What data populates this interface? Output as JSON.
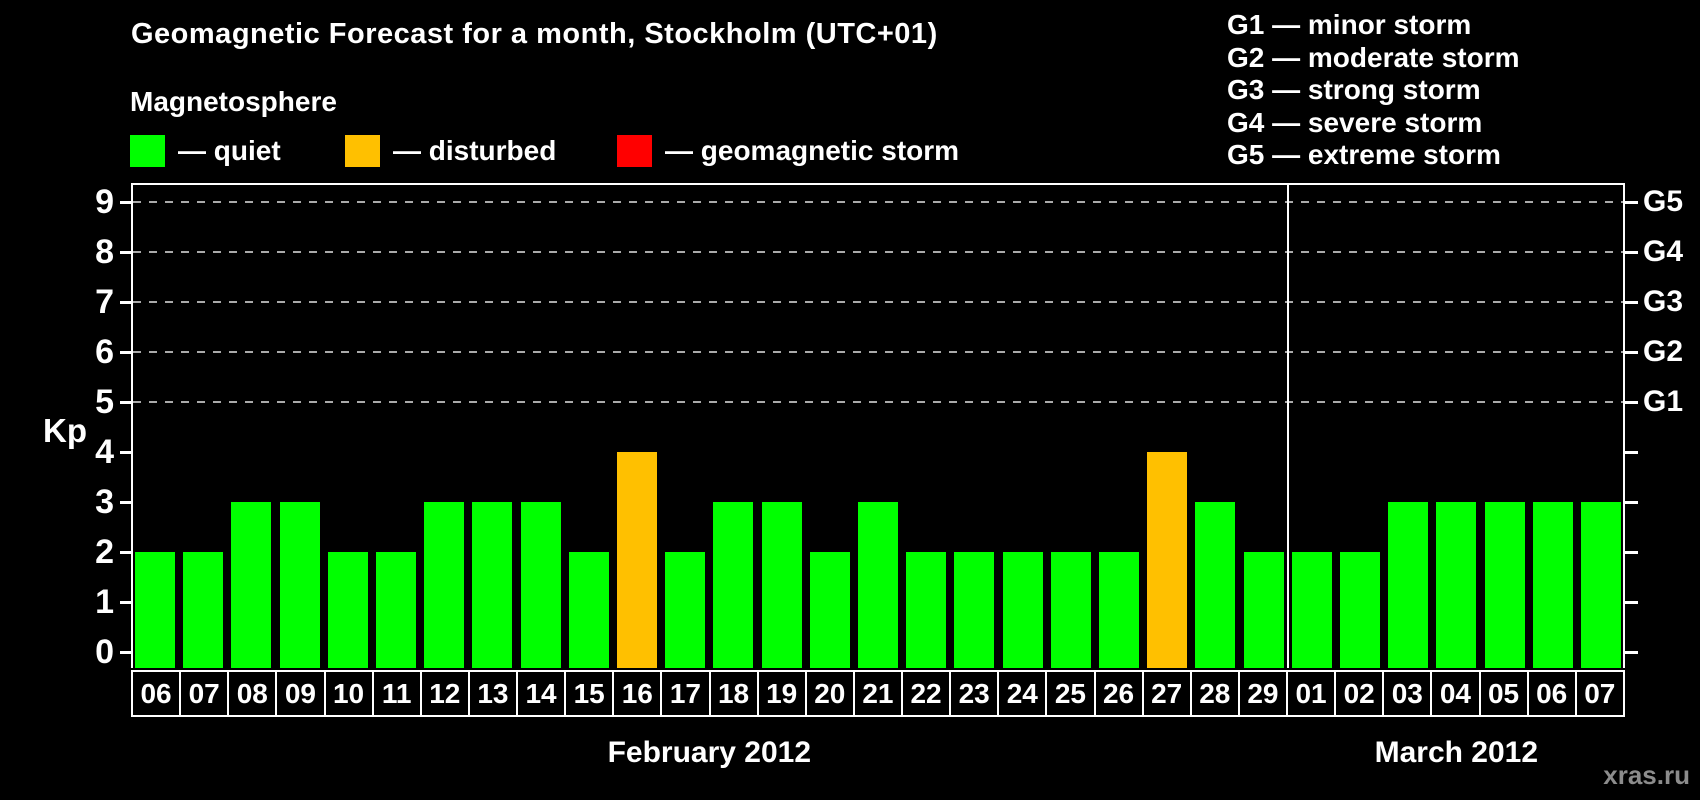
{
  "title": "Geomagnetic Forecast for a month, Stockholm (UTC+01)",
  "magnetosphere": {
    "heading": "Magnetosphere",
    "items": [
      {
        "status": "quiet",
        "label": "— quiet",
        "color": "#00ff00"
      },
      {
        "status": "disturbed",
        "label": "— disturbed",
        "color": "#ffc000"
      },
      {
        "status": "storm",
        "label": "— geomagnetic storm",
        "color": "#ff0000"
      }
    ]
  },
  "g_scale_legend": {
    "items": [
      "G1 — minor storm",
      "G2 — moderate storm",
      "G3 — strong storm",
      "G4 — severe storm",
      "G5 — extreme storm"
    ]
  },
  "watermark": "xras.ru",
  "chart_data": {
    "type": "bar",
    "title": "Geomagnetic Forecast for a month, Stockholm (UTC+01)",
    "ylabel": "Kp",
    "ylim": [
      -0.35,
      9.4
    ],
    "yticks": [
      0,
      1,
      2,
      3,
      4,
      5,
      6,
      7,
      8,
      9
    ],
    "gridlines_at": [
      5,
      6,
      7,
      8,
      9
    ],
    "grid_style": "dashed gray horizontal lines at storm levels only",
    "right_axis": [
      {
        "kp": 5,
        "label": "G1"
      },
      {
        "kp": 6,
        "label": "G2"
      },
      {
        "kp": 7,
        "label": "G3"
      },
      {
        "kp": 8,
        "label": "G4"
      },
      {
        "kp": 9,
        "label": "G5"
      }
    ],
    "colors": {
      "quiet": "#00ff00",
      "disturbed": "#ffc000",
      "storm": "#ff0000"
    },
    "color_thresholds": {
      "quiet_max_kp": 3,
      "disturbed_max_kp": 5
    },
    "legend_position": "top-left",
    "months": [
      {
        "label": "February 2012",
        "days": [
          "06",
          "07",
          "08",
          "09",
          "10",
          "11",
          "12",
          "13",
          "14",
          "15",
          "16",
          "17",
          "18",
          "19",
          "20",
          "21",
          "22",
          "23",
          "24",
          "25",
          "26",
          "27",
          "28",
          "29"
        ],
        "values": [
          2,
          2,
          3,
          3,
          2,
          2,
          3,
          3,
          3,
          2,
          4,
          2,
          3,
          3,
          2,
          3,
          2,
          2,
          2,
          2,
          2,
          4,
          3,
          2
        ]
      },
      {
        "label": "March 2012",
        "days": [
          "01",
          "02",
          "03",
          "04",
          "05",
          "06",
          "07"
        ],
        "values": [
          2,
          2,
          3,
          3,
          3,
          3,
          3
        ]
      }
    ]
  }
}
